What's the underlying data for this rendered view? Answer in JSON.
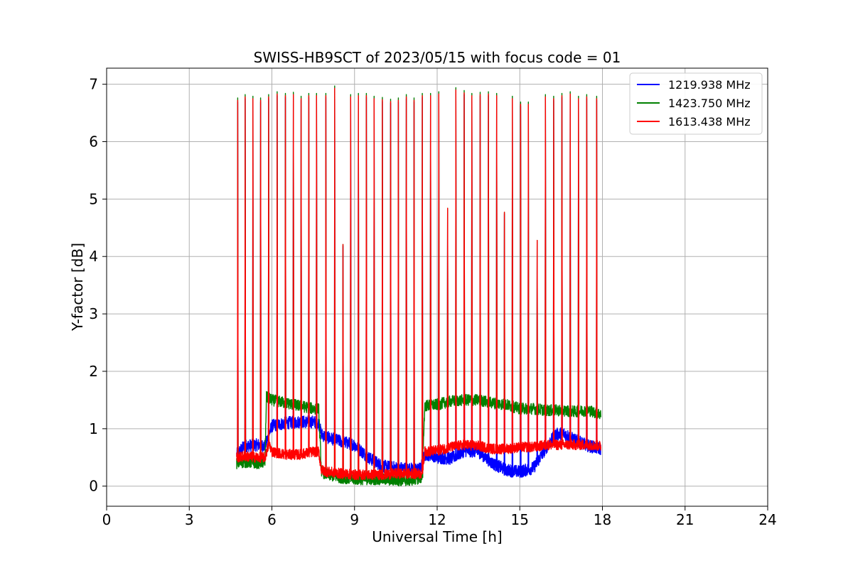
{
  "chart_data": {
    "type": "line",
    "title": "SWISS-HB9SCT of 2023/05/15 with focus code = 01",
    "xlabel": "Universal Time [h]",
    "ylabel": "Y-factor [dB]",
    "xlim": [
      0,
      24
    ],
    "ylim": [
      -0.35,
      7.28
    ],
    "xticks": [
      0,
      3,
      6,
      9,
      12,
      15,
      18,
      21,
      24
    ],
    "yticks": [
      0,
      1,
      2,
      3,
      4,
      5,
      6,
      7
    ],
    "grid": true,
    "legend_position": "top-right",
    "series": [
      {
        "name": "1219.938 MHz",
        "color": "#0000ff",
        "x": [
          4.72,
          5.0,
          5.5,
          5.75,
          6.0,
          6.5,
          7.0,
          7.5,
          7.7,
          7.8,
          8.0,
          8.5,
          9.0,
          9.5,
          10.0,
          10.5,
          11.0,
          11.4,
          11.55,
          11.8,
          12.0,
          12.5,
          13.0,
          13.5,
          14.0,
          14.5,
          15.0,
          15.5,
          15.8,
          16.0,
          16.3,
          16.6,
          17.0,
          17.5,
          17.95
        ],
        "y": [
          0.55,
          0.7,
          0.72,
          0.7,
          1.05,
          1.1,
          1.12,
          1.12,
          1.1,
          0.9,
          0.85,
          0.78,
          0.72,
          0.5,
          0.35,
          0.32,
          0.3,
          0.3,
          0.55,
          0.55,
          0.5,
          0.48,
          0.62,
          0.6,
          0.4,
          0.28,
          0.25,
          0.32,
          0.55,
          0.7,
          0.9,
          0.92,
          0.8,
          0.7,
          0.65
        ]
      },
      {
        "name": "1423.750 MHz",
        "color": "#008000",
        "x": [
          4.72,
          5.0,
          5.5,
          5.75,
          5.8,
          6.0,
          6.5,
          7.0,
          7.5,
          7.7,
          7.8,
          8.0,
          8.5,
          9.0,
          9.5,
          10.0,
          10.5,
          11.0,
          11.45,
          11.55,
          12.0,
          12.5,
          13.0,
          13.5,
          14.0,
          14.5,
          15.0,
          15.5,
          16.0,
          16.5,
          17.0,
          17.5,
          17.95
        ],
        "y": [
          0.4,
          0.42,
          0.4,
          0.42,
          1.55,
          1.5,
          1.45,
          1.4,
          1.35,
          1.35,
          0.25,
          0.2,
          0.15,
          0.12,
          0.12,
          0.12,
          0.1,
          0.1,
          0.15,
          1.4,
          1.42,
          1.48,
          1.5,
          1.5,
          1.45,
          1.42,
          1.35,
          1.35,
          1.32,
          1.32,
          1.3,
          1.32,
          1.25
        ]
      },
      {
        "name": "1613.438 MHz",
        "color": "#ff0000",
        "x": [
          4.72,
          5.0,
          5.5,
          5.75,
          5.9,
          6.0,
          6.5,
          7.0,
          7.5,
          7.7,
          7.8,
          8.0,
          8.5,
          9.0,
          9.5,
          10.0,
          10.5,
          11.0,
          11.45,
          11.55,
          12.0,
          12.5,
          13.0,
          13.5,
          14.0,
          14.5,
          15.0,
          15.5,
          16.0,
          16.5,
          17.0,
          17.5,
          17.95
        ],
        "y": [
          0.5,
          0.52,
          0.5,
          0.5,
          0.75,
          0.6,
          0.55,
          0.55,
          0.6,
          0.6,
          0.28,
          0.25,
          0.22,
          0.2,
          0.2,
          0.2,
          0.22,
          0.22,
          0.22,
          0.6,
          0.62,
          0.68,
          0.72,
          0.7,
          0.65,
          0.65,
          0.68,
          0.68,
          0.72,
          0.72,
          0.72,
          0.72,
          0.7
        ]
      }
    ],
    "spikes": {
      "times": [
        4.75,
        5.02,
        5.3,
        5.58,
        5.87,
        6.18,
        6.48,
        6.77,
        7.05,
        7.33,
        7.61,
        7.95,
        8.27,
        8.57,
        8.85,
        9.13,
        9.42,
        9.7,
        10.0,
        10.3,
        10.58,
        10.87,
        11.15,
        11.45,
        11.75,
        12.05,
        12.37,
        12.67,
        12.97,
        13.25,
        13.55,
        13.85,
        14.15,
        14.43,
        14.72,
        15.02,
        15.3,
        15.62,
        15.92,
        16.22,
        16.52,
        16.82,
        17.12,
        17.42,
        17.78
      ],
      "peaks": [
        6.72,
        6.78,
        6.75,
        6.72,
        6.78,
        6.83,
        6.8,
        6.82,
        6.75,
        6.8,
        6.8,
        6.8,
        6.93,
        4.21,
        6.78,
        6.8,
        6.8,
        6.75,
        6.73,
        6.7,
        6.72,
        6.78,
        6.72,
        6.8,
        6.8,
        6.83,
        4.84,
        6.9,
        6.85,
        6.8,
        6.82,
        6.83,
        6.8,
        4.77,
        6.75,
        6.65,
        6.65,
        4.28,
        6.78,
        6.75,
        6.8,
        6.83,
        6.75,
        6.78,
        6.75
      ]
    }
  }
}
